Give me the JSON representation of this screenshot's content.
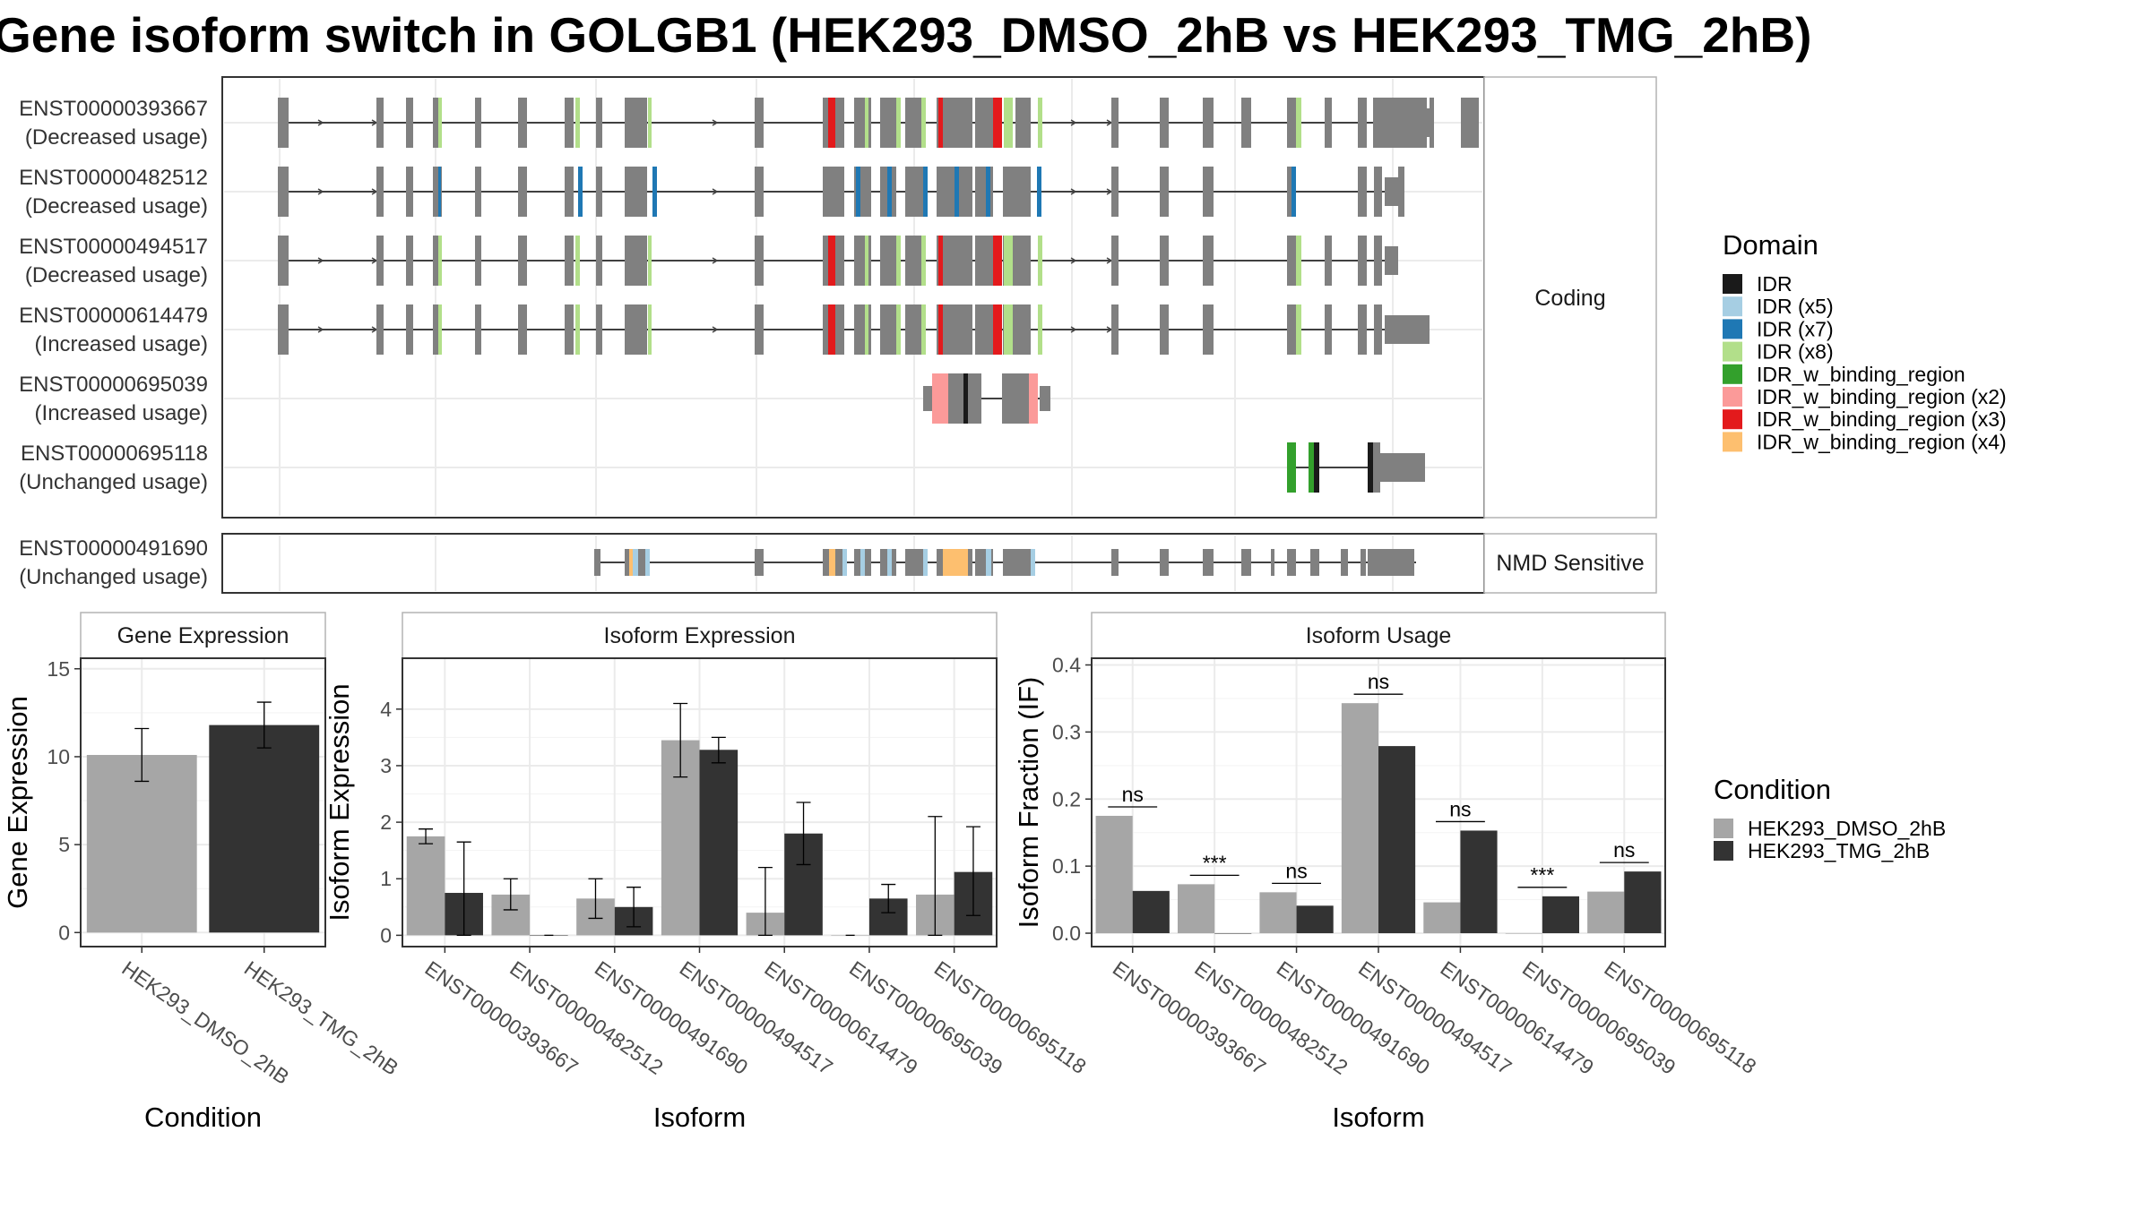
{
  "title": "Gene isoform switch in GOLGB1 (HEK293_DMSO_2hB vs HEK293_TMG_2hB)",
  "structure_panel": {
    "coding_label": "Coding",
    "nmd_label": "NMD Sensitive",
    "coding_isoforms": [
      {
        "id": "ENST00000393667",
        "usage": "(Decreased usage)"
      },
      {
        "id": "ENST00000482512",
        "usage": "(Decreased usage)"
      },
      {
        "id": "ENST00000494517",
        "usage": "(Decreased usage)"
      },
      {
        "id": "ENST00000614479",
        "usage": "(Increased usage)"
      },
      {
        "id": "ENST00000695039",
        "usage": "(Increased usage)"
      },
      {
        "id": "ENST00000695118",
        "usage": "(Unchanged usage)"
      }
    ],
    "nmd_isoforms": [
      {
        "id": "ENST00000491690",
        "usage": "(Unchanged usage)"
      }
    ]
  },
  "domain_legend": {
    "title": "Domain",
    "items": [
      {
        "label": "IDR",
        "color": "#1a1a1a"
      },
      {
        "label": "IDR (x5)",
        "color": "#a6cee3"
      },
      {
        "label": "IDR (x7)",
        "color": "#1f78b4"
      },
      {
        "label": "IDR (x8)",
        "color": "#b2df8a"
      },
      {
        "label": "IDR_w_binding_region",
        "color": "#33a02c"
      },
      {
        "label": "IDR_w_binding_region (x2)",
        "color": "#fb9a99"
      },
      {
        "label": "IDR_w_binding_region (x3)",
        "color": "#e31a1c"
      },
      {
        "label": "IDR_w_binding_region (x4)",
        "color": "#fdbf6f"
      }
    ]
  },
  "condition_legend": {
    "title": "Condition",
    "items": [
      {
        "label": "HEK293_DMSO_2hB",
        "color": "#a6a6a6"
      },
      {
        "label": "HEK293_TMG_2hB",
        "color": "#333333"
      }
    ]
  },
  "chart_data": [
    {
      "type": "bar",
      "title": "Gene Expression",
      "xlabel": "Condition",
      "ylabel": "Gene Expression",
      "categories": [
        "HEK293_DMSO_2hB",
        "HEK293_TMG_2hB"
      ],
      "values": [
        10.1,
        11.8
      ],
      "errors": [
        [
          8.6,
          11.6
        ],
        [
          10.5,
          13.1
        ]
      ],
      "colors": [
        "#a6a6a6",
        "#333333"
      ],
      "ylim": [
        -0.8,
        15.6
      ],
      "yticks": [
        0,
        5,
        10,
        15
      ],
      "grid": true
    },
    {
      "type": "bar",
      "title": "Isoform Expression",
      "xlabel": "Isoform",
      "ylabel": "Isoform Expression",
      "categories": [
        "ENST00000393667",
        "ENST00000482512",
        "ENST00000491690",
        "ENST00000494517",
        "ENST00000614479",
        "ENST00000695039",
        "ENST00000695118"
      ],
      "series": [
        {
          "name": "HEK293_DMSO_2hB",
          "values": [
            1.75,
            0.72,
            0.65,
            3.45,
            0.4,
            0.0,
            0.72
          ],
          "errors": [
            [
              1.62,
              1.88
            ],
            [
              0.45,
              1.0
            ],
            [
              0.3,
              1.0
            ],
            [
              2.8,
              4.1
            ],
            [
              0.0,
              1.2
            ],
            [
              0.0,
              0.0
            ],
            [
              0.0,
              2.1
            ]
          ]
        },
        {
          "name": "HEK293_TMG_2hB",
          "values": [
            0.75,
            0.0,
            0.5,
            3.28,
            1.8,
            0.65,
            1.12
          ],
          "errors": [
            [
              0.0,
              1.65
            ],
            [
              0.0,
              0.0
            ],
            [
              0.15,
              0.85
            ],
            [
              3.05,
              3.5
            ],
            [
              1.25,
              2.35
            ],
            [
              0.4,
              0.9
            ],
            [
              0.35,
              1.92
            ]
          ]
        }
      ],
      "ylim": [
        -0.2,
        4.9
      ],
      "yticks": [
        0,
        1,
        2,
        3,
        4
      ],
      "grid": true
    },
    {
      "type": "bar",
      "title": "Isoform Usage",
      "xlabel": "Isoform",
      "ylabel": "Isoform Fraction (IF)",
      "categories": [
        "ENST00000393667",
        "ENST00000482512",
        "ENST00000491690",
        "ENST00000494517",
        "ENST00000614479",
        "ENST00000695039",
        "ENST00000695118"
      ],
      "series": [
        {
          "name": "HEK293_DMSO_2hB",
          "values": [
            0.175,
            0.073,
            0.061,
            0.343,
            0.046,
            0.0,
            0.062
          ]
        },
        {
          "name": "HEK293_TMG_2hB",
          "values": [
            0.063,
            0.0,
            0.041,
            0.279,
            0.153,
            0.055,
            0.092
          ]
        }
      ],
      "significance": [
        "ns",
        "***",
        "ns",
        "ns",
        "ns",
        "***",
        "ns"
      ],
      "ylim": [
        -0.02,
        0.41
      ],
      "yticks": [
        0.0,
        0.1,
        0.2,
        0.3,
        0.4
      ],
      "grid": true
    }
  ]
}
